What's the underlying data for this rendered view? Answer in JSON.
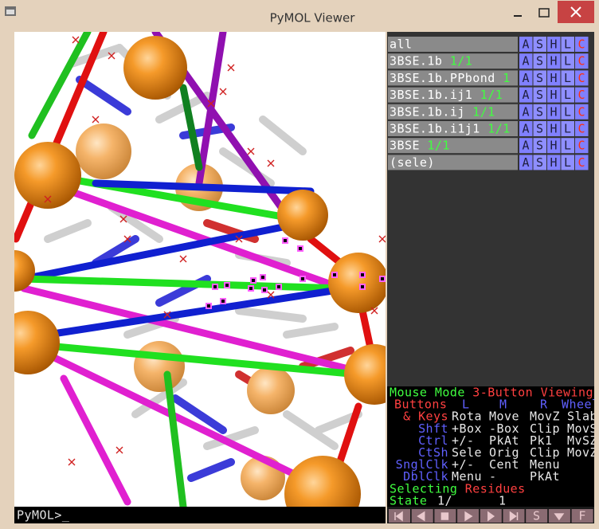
{
  "window": {
    "title": "PyMOL Viewer"
  },
  "objects": [
    {
      "name": "all"
    },
    {
      "name": "3BSE.1b",
      "state": "1/1"
    },
    {
      "name": "3BSE.1b.PPbond",
      "state": "1"
    },
    {
      "name": "3BSE.1b.ij1",
      "state": "1/1"
    },
    {
      "name": "3BSE.1b.ij",
      "state": "1/1"
    },
    {
      "name": "3BSE.1b.i1j1",
      "state": "1/1"
    },
    {
      "name": "3BSE",
      "state": "1/1"
    },
    {
      "name": "(sele)"
    }
  ],
  "object_buttons": [
    "A",
    "S",
    "H",
    "L",
    "C"
  ],
  "mouse_mode": {
    "label": "Mouse Mode",
    "mode": "3-Button Viewing",
    "buttons_label": "Buttons",
    "columns": [
      "L",
      "M",
      "R",
      "Wheel"
    ],
    "rows": [
      {
        "key": "& Keys",
        "actions": [
          "Rota",
          "Move",
          "MovZ",
          "Slab"
        ]
      },
      {
        "key": "Shft",
        "actions": [
          "+Box",
          "-Box",
          "Clip",
          "MovS"
        ]
      },
      {
        "key": "Ctrl",
        "actions": [
          "+/-",
          "PkAt",
          "Pk1",
          "MvSZ"
        ]
      },
      {
        "key": "CtSh",
        "actions": [
          "Sele",
          "Orig",
          "Clip",
          "MovZ"
        ]
      },
      {
        "key": "SnglClk",
        "actions": [
          "+/-",
          "Cent",
          "Menu"
        ]
      },
      {
        "key": "DblClk",
        "actions": [
          "Menu",
          "-",
          "PkAt"
        ]
      }
    ]
  },
  "selecting": {
    "label": "Selecting",
    "value": "Residues"
  },
  "state": {
    "label": "State",
    "current": "1/",
    "total": "1"
  },
  "command_line": "PyMOL>_",
  "playback_text_buttons": [
    "S",
    "F"
  ]
}
